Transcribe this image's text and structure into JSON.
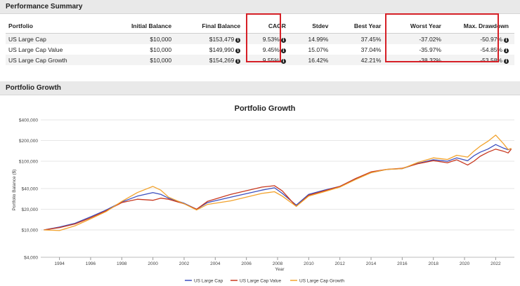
{
  "summary": {
    "section_title": "Performance Summary",
    "columns": [
      "Portfolio",
      "Initial Balance",
      "Final Balance",
      "CAGR",
      "Stdev",
      "Best Year",
      "Worst Year",
      "Max. Drawdown"
    ],
    "rows": [
      {
        "portfolio": "US Large Cap",
        "initial": "$10,000",
        "final": "$153,479",
        "cagr": "9.53%",
        "stdev": "14.99%",
        "best": "37.45%",
        "worst": "-37.02%",
        "drawdown": "-50.97%"
      },
      {
        "portfolio": "US Large Cap Value",
        "initial": "$10,000",
        "final": "$149,990",
        "cagr": "9.45%",
        "stdev": "15.07%",
        "best": "37.04%",
        "worst": "-35.97%",
        "drawdown": "-54.85%"
      },
      {
        "portfolio": "US Large Cap Growth",
        "initial": "$10,000",
        "final": "$154,269",
        "cagr": "9.55%",
        "stdev": "16.42%",
        "best": "42.21%",
        "worst": "-38.32%",
        "drawdown": "-53.58%"
      }
    ],
    "info_glyph": "i"
  },
  "growth_section": {
    "title": "Portfolio Growth"
  },
  "colors": {
    "large_cap": "#3c4fbf",
    "large_value": "#c8381f",
    "large_growth": "#f2a22c",
    "highlight": "#d62027"
  },
  "chart_data": {
    "type": "line",
    "title": "Portfolio Growth",
    "xlabel": "Year",
    "ylabel": "Portfolio Balance ($)",
    "yscale": "log",
    "ylim": [
      4000,
      400000
    ],
    "xlim": [
      1992.8,
      2023.2
    ],
    "yticks": [
      4000,
      10000,
      20000,
      40000,
      100000,
      200000,
      400000
    ],
    "ytick_labels": [
      "$4,000",
      "$10,000",
      "$20,000",
      "$40,000",
      "$100,000",
      "$200,000",
      "$400,000"
    ],
    "xticks": [
      1994,
      1996,
      1998,
      2000,
      2002,
      2004,
      2006,
      2008,
      2010,
      2012,
      2014,
      2016,
      2018,
      2020,
      2022
    ],
    "gridlines": true,
    "series": [
      {
        "name": "US Large Cap",
        "color": "#3c4fbf",
        "x": [
          1993.0,
          1994.0,
          1995.0,
          1996.0,
          1997.0,
          1998.0,
          1999.0,
          2000.0,
          2000.5,
          2001.0,
          2002.0,
          2002.8,
          2003.5,
          2005.0,
          2007.0,
          2007.8,
          2008.3,
          2009.2,
          2010.0,
          2011.0,
          2012.0,
          2013.0,
          2014.0,
          2015.0,
          2016.0,
          2017.0,
          2018.0,
          2018.9,
          2019.5,
          2020.2,
          2020.6,
          2021.0,
          2021.5,
          2022.0,
          2022.5,
          2022.8,
          2023.0
        ],
        "values": [
          10000,
          11000,
          12500,
          15500,
          19500,
          25500,
          31000,
          35000,
          33000,
          29000,
          24500,
          20000,
          25000,
          30000,
          38000,
          41000,
          34000,
          23000,
          33000,
          38000,
          43000,
          55000,
          68000,
          76000,
          78000,
          93000,
          105000,
          100000,
          112000,
          102000,
          120000,
          135000,
          150000,
          175000,
          155000,
          147000,
          153479
        ]
      },
      {
        "name": "US Large Cap Value",
        "color": "#c8381f",
        "x": [
          1993.0,
          1994.0,
          1995.0,
          1996.0,
          1997.0,
          1998.0,
          1999.0,
          2000.0,
          2000.5,
          2001.0,
          2002.0,
          2002.8,
          2003.5,
          2005.0,
          2007.0,
          2007.8,
          2008.3,
          2009.2,
          2010.0,
          2011.0,
          2012.0,
          2013.0,
          2014.0,
          2015.0,
          2016.0,
          2017.0,
          2018.0,
          2018.9,
          2019.5,
          2020.2,
          2020.6,
          2021.0,
          2021.5,
          2022.0,
          2022.5,
          2022.8,
          2023.0
        ],
        "values": [
          10000,
          10800,
          12200,
          15000,
          19000,
          25000,
          28000,
          27000,
          29000,
          28000,
          24000,
          20000,
          26000,
          33000,
          42000,
          44000,
          37000,
          22000,
          32000,
          37000,
          43000,
          56000,
          70000,
          76000,
          79000,
          92000,
          102000,
          95000,
          105000,
          88000,
          100000,
          118000,
          135000,
          150000,
          140000,
          132000,
          149990
        ]
      },
      {
        "name": "US Large Cap Growth",
        "color": "#f2a22c",
        "x": [
          1993.0,
          1994.0,
          1995.0,
          1996.0,
          1997.0,
          1998.0,
          1999.0,
          2000.0,
          2000.5,
          2001.0,
          2002.0,
          2002.8,
          2003.5,
          2005.0,
          2007.0,
          2007.8,
          2008.3,
          2009.2,
          2010.0,
          2011.0,
          2012.0,
          2013.0,
          2014.0,
          2015.0,
          2016.0,
          2017.0,
          2018.0,
          2018.9,
          2019.5,
          2020.2,
          2020.6,
          2021.0,
          2021.5,
          2022.0,
          2022.5,
          2022.8,
          2023.0
        ],
        "values": [
          10000,
          9800,
          11500,
          14500,
          18500,
          26000,
          35000,
          43000,
          38000,
          30000,
          24000,
          19500,
          23500,
          26500,
          34000,
          36000,
          31000,
          22000,
          31000,
          36000,
          42000,
          54000,
          68000,
          76000,
          78000,
          96000,
          112000,
          106000,
          122000,
          115000,
          140000,
          165000,
          195000,
          240000,
          180000,
          148000,
          154269
        ]
      }
    ]
  }
}
